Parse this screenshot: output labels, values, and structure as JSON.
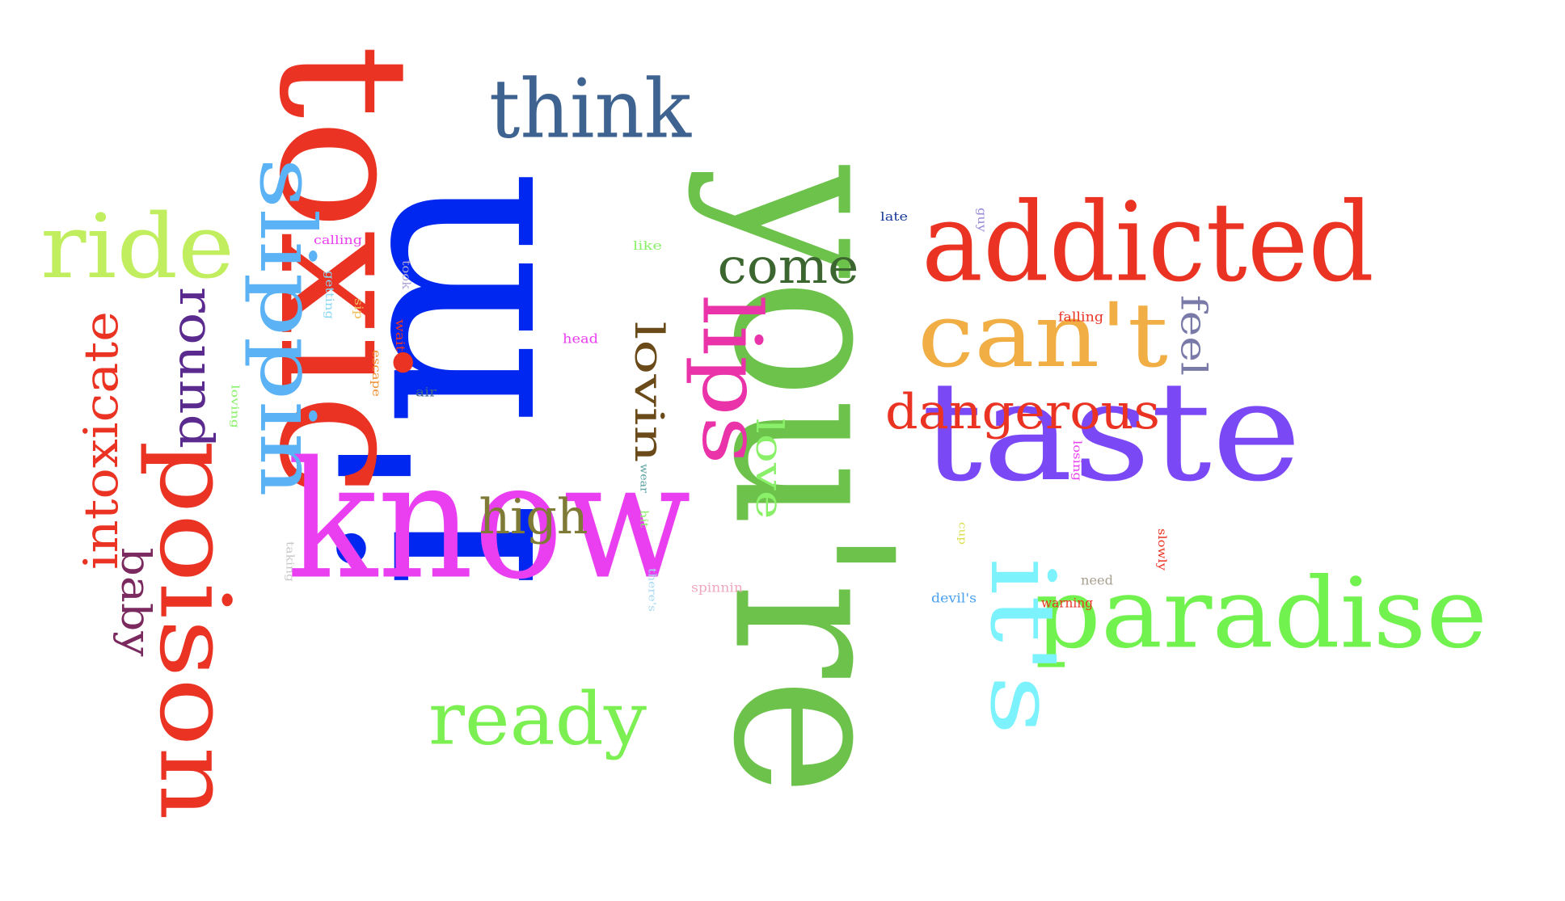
{
  "words": [
    {
      "id": "im",
      "text": "i'm",
      "color": "#0027f0"
    },
    {
      "id": "youre",
      "text": "you're",
      "color": "#6cc24a"
    },
    {
      "id": "toxic",
      "text": "toxic",
      "color": "#ea3323"
    },
    {
      "id": "know",
      "text": "know",
      "color": "#ea3ff0"
    },
    {
      "id": "taste",
      "text": "taste",
      "color": "#7b48f5"
    },
    {
      "id": "addicted",
      "text": "addicted",
      "color": "#ea3323"
    },
    {
      "id": "paradise",
      "text": "paradise",
      "color": "#72f24f"
    },
    {
      "id": "poison",
      "text": "poison",
      "color": "#ea3323"
    },
    {
      "id": "think",
      "text": "think",
      "color": "#3e6390"
    },
    {
      "id": "slippin",
      "text": "slippin",
      "color": "#5bb3f5"
    },
    {
      "id": "ride",
      "text": "ride",
      "color": "#c1ee5f"
    },
    {
      "id": "cant",
      "text": "can't",
      "color": "#f0ae45"
    },
    {
      "id": "its",
      "text": "it's",
      "color": "#7cf2fc"
    },
    {
      "id": "lips",
      "text": "lips",
      "color": "#ea33a8"
    },
    {
      "id": "ready",
      "text": "ready",
      "color": "#7cf052"
    },
    {
      "id": "dangerous",
      "text": "dangerous",
      "color": "#ea3323"
    },
    {
      "id": "come",
      "text": "come",
      "color": "#3c6630"
    },
    {
      "id": "high",
      "text": "high",
      "color": "#7f7a35"
    },
    {
      "id": "intoxicate",
      "text": "intoxicate",
      "color": "#ea3323"
    },
    {
      "id": "round",
      "text": "round",
      "color": "#5a2a8e"
    },
    {
      "id": "baby",
      "text": "baby",
      "color": "#7a2a5e"
    },
    {
      "id": "lovin",
      "text": "lovin",
      "color": "#6b4a1a"
    },
    {
      "id": "love",
      "text": "love",
      "color": "#8af06a"
    },
    {
      "id": "feel",
      "text": "feel",
      "color": "#7a7aa8"
    },
    {
      "id": "late",
      "text": "late",
      "color": "#1a3a9a"
    },
    {
      "id": "guy",
      "text": "guy",
      "color": "#9a8ad8"
    },
    {
      "id": "like",
      "text": "like",
      "color": "#8af06a"
    },
    {
      "id": "calling",
      "text": "calling",
      "color": "#ea3ff0"
    },
    {
      "id": "took",
      "text": "took",
      "color": "#b0a8d8"
    },
    {
      "id": "getting",
      "text": "getting",
      "color": "#8ad8f5"
    },
    {
      "id": "sip",
      "text": "sip",
      "color": "#f0c060"
    },
    {
      "id": "wait",
      "text": "wait",
      "color": "#ea3323"
    },
    {
      "id": "escape",
      "text": "escape",
      "color": "#f09030"
    },
    {
      "id": "head",
      "text": "head",
      "color": "#ea3ff0"
    },
    {
      "id": "air",
      "text": "air",
      "color": "#3e6390"
    },
    {
      "id": "loving",
      "text": "loving",
      "color": "#8af06a"
    },
    {
      "id": "falling",
      "text": "falling",
      "color": "#ea3323"
    },
    {
      "id": "losing",
      "text": "losing",
      "color": "#ea3ff0"
    },
    {
      "id": "wear",
      "text": "wear",
      "color": "#5aa0a0"
    },
    {
      "id": "hit",
      "text": "hit",
      "color": "#8af06a"
    },
    {
      "id": "cup",
      "text": "cup",
      "color": "#d8e050"
    },
    {
      "id": "slowly",
      "text": "slowly",
      "color": "#ea3323"
    },
    {
      "id": "taking",
      "text": "taking",
      "color": "#c8c8c8"
    },
    {
      "id": "theres",
      "text": "there's",
      "color": "#a8d8f0"
    },
    {
      "id": "spinnin",
      "text": "spinnin",
      "color": "#f0a8c0"
    },
    {
      "id": "need",
      "text": "need",
      "color": "#a8a090"
    },
    {
      "id": "devils",
      "text": "devil's",
      "color": "#4aa0f0"
    },
    {
      "id": "warning",
      "text": "warning",
      "color": "#ea3323"
    }
  ]
}
